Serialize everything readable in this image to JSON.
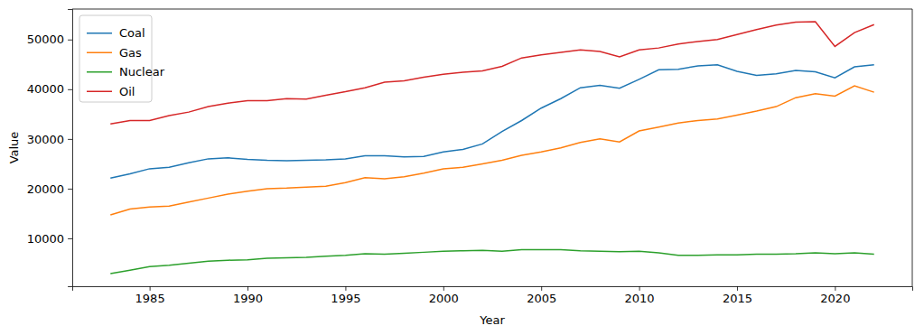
{
  "chart_data": {
    "type": "line",
    "x_label": "Year",
    "y_label": "Value",
    "x": [
      1983,
      1984,
      1985,
      1986,
      1987,
      1988,
      1989,
      1990,
      1991,
      1992,
      1993,
      1994,
      1995,
      1996,
      1997,
      1998,
      1999,
      2000,
      2001,
      2002,
      2003,
      2004,
      2005,
      2006,
      2007,
      2008,
      2009,
      2010,
      2011,
      2012,
      2013,
      2014,
      2015,
      2016,
      2017,
      2018,
      2019,
      2020,
      2021,
      2022
    ],
    "series": [
      {
        "name": "Coal",
        "color": "#1f77b4",
        "values": [
          22100,
          23000,
          24000,
          24300,
          25200,
          26000,
          26200,
          25900,
          25700,
          25600,
          25700,
          25800,
          26000,
          26600,
          26600,
          26400,
          26500,
          27400,
          27900,
          29000,
          31500,
          33700,
          36200,
          38100,
          40300,
          40800,
          40200,
          42000,
          43900,
          44000,
          44700,
          44900,
          43600,
          42800,
          43100,
          43800,
          43500,
          42300,
          44500,
          44900
        ]
      },
      {
        "name": "Gas",
        "color": "#ff7f0e",
        "values": [
          14700,
          15900,
          16300,
          16500,
          17300,
          18100,
          18900,
          19500,
          20000,
          20100,
          20300,
          20500,
          21200,
          22200,
          22000,
          22400,
          23100,
          24000,
          24300,
          25000,
          25700,
          26700,
          27400,
          28200,
          29300,
          30000,
          29400,
          31600,
          32400,
          33200,
          33700,
          34000,
          34800,
          35600,
          36500,
          38300,
          39100,
          38600,
          40700,
          39400
        ]
      },
      {
        "name": "Nuclear",
        "color": "#2ca02c",
        "values": [
          2900,
          3600,
          4300,
          4600,
          5000,
          5400,
          5600,
          5700,
          6000,
          6100,
          6200,
          6400,
          6600,
          6900,
          6800,
          7000,
          7200,
          7400,
          7500,
          7600,
          7400,
          7700,
          7700,
          7700,
          7500,
          7400,
          7300,
          7400,
          7100,
          6600,
          6600,
          6700,
          6700,
          6800,
          6800,
          6900,
          7100,
          6900,
          7100,
          6800
        ]
      },
      {
        "name": "Oil",
        "color": "#d62728",
        "values": [
          33000,
          33700,
          33700,
          34700,
          35400,
          36500,
          37200,
          37700,
          37700,
          38100,
          38000,
          38800,
          39500,
          40300,
          41400,
          41700,
          42400,
          43000,
          43400,
          43700,
          44600,
          46300,
          46900,
          47400,
          47900,
          47600,
          46500,
          47900,
          48300,
          49100,
          49600,
          50000,
          51000,
          52000,
          52900,
          53500,
          53600,
          48600,
          51400,
          53000
        ]
      }
    ],
    "xlim": [
      1981.05,
      2023.95
    ],
    "xticks": [
      1985,
      1990,
      1995,
      2000,
      2005,
      2010,
      2015,
      2020
    ],
    "ylim": [
      365,
      56135
    ],
    "yticks": [
      10000,
      20000,
      30000,
      40000,
      50000
    ],
    "grid": false,
    "legend": "upper left"
  }
}
